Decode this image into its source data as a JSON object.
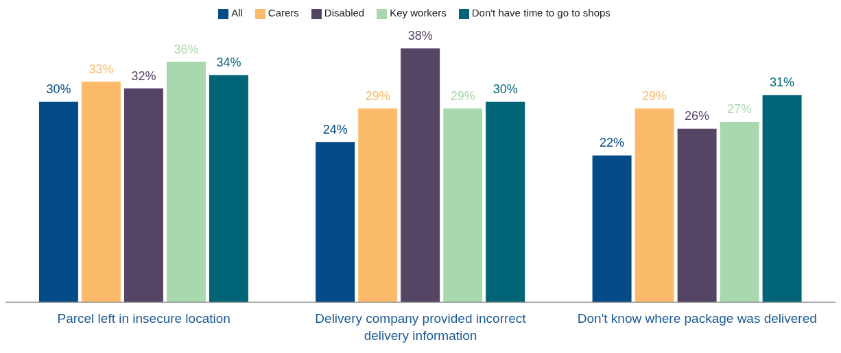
{
  "chart_data": {
    "type": "bar",
    "categories": [
      "Parcel left in insecure location",
      "Delivery company provided incorrect delivery information",
      "Don't know where package was delivered"
    ],
    "series": [
      {
        "name": "All",
        "color": "#034b87",
        "values": [
          30,
          24,
          22
        ],
        "value_labels": [
          "30%",
          "24%",
          "22%"
        ]
      },
      {
        "name": "Carers",
        "color": "#fbbb6a",
        "values": [
          33,
          29,
          29
        ],
        "value_labels": [
          "33%",
          "29%",
          "29%"
        ]
      },
      {
        "name": "Disabled",
        "color": "#544565",
        "values": [
          32,
          38,
          26
        ],
        "value_labels": [
          "32%",
          "38%",
          "26%"
        ]
      },
      {
        "name": "Key workers",
        "color": "#a8d8ad",
        "values": [
          36,
          29,
          27
        ],
        "value_labels": [
          "36%",
          "29%",
          "27%"
        ]
      },
      {
        "name": "Don't have time to go to shops",
        "color": "#016577",
        "values": [
          34,
          30,
          31
        ],
        "value_labels": [
          "34%",
          "30%",
          "31%"
        ]
      }
    ],
    "grid": false,
    "legend": "top"
  }
}
